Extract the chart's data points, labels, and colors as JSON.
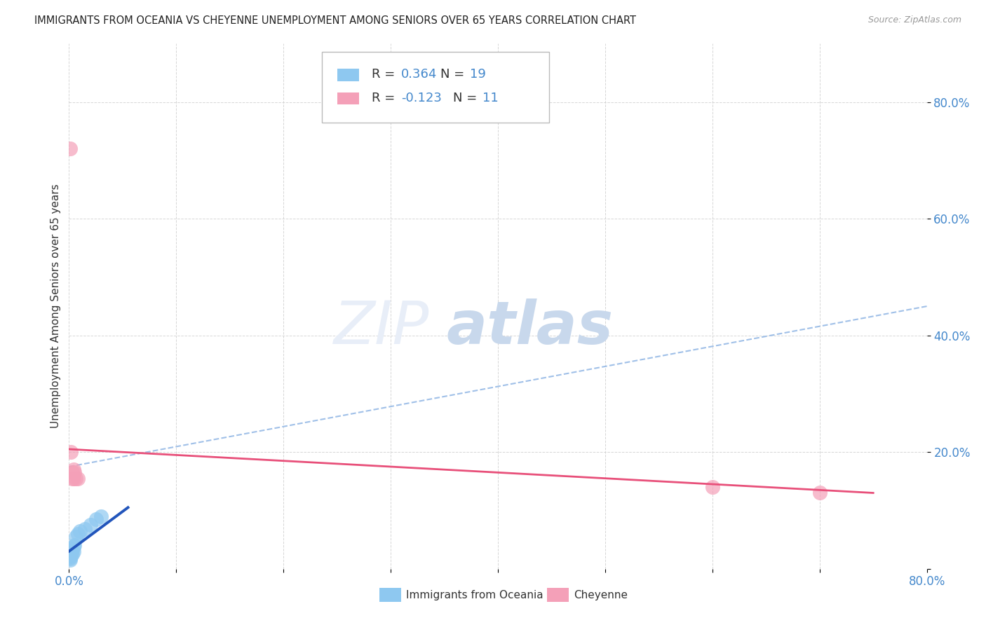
{
  "title": "IMMIGRANTS FROM OCEANIA VS CHEYENNE UNEMPLOYMENT AMONG SENIORS OVER 65 YEARS CORRELATION CHART",
  "source": "Source: ZipAtlas.com",
  "ylabel": "Unemployment Among Seniors over 65 years",
  "xlim": [
    0.0,
    0.8
  ],
  "ylim": [
    0.0,
    0.9
  ],
  "xtick_positions": [
    0.0,
    0.1,
    0.2,
    0.3,
    0.4,
    0.5,
    0.6,
    0.7,
    0.8
  ],
  "xticklabels": [
    "0.0%",
    "",
    "",
    "",
    "",
    "",
    "",
    "",
    "80.0%"
  ],
  "ytick_positions": [
    0.0,
    0.2,
    0.4,
    0.6,
    0.8
  ],
  "yticklabels": [
    "",
    "20.0%",
    "40.0%",
    "60.0%",
    "80.0%"
  ],
  "r1": 0.364,
  "n1": 19,
  "r2": -0.123,
  "n2": 11,
  "color_blue": "#8EC8F0",
  "color_pink": "#F4A0B8",
  "color_line_blue": "#2255BB",
  "color_line_pink": "#E8507A",
  "color_dash": "#A0C0E8",
  "tick_color": "#4488CC",
  "blue_points": [
    [
      0.001,
      0.02
    ],
    [
      0.001,
      0.015
    ],
    [
      0.001,
      0.025
    ],
    [
      0.001,
      0.018
    ],
    [
      0.002,
      0.022
    ],
    [
      0.002,
      0.028
    ],
    [
      0.002,
      0.035
    ],
    [
      0.003,
      0.025
    ],
    [
      0.003,
      0.032
    ],
    [
      0.004,
      0.03
    ],
    [
      0.004,
      0.038
    ],
    [
      0.005,
      0.04
    ],
    [
      0.006,
      0.055
    ],
    [
      0.008,
      0.06
    ],
    [
      0.01,
      0.065
    ],
    [
      0.015,
      0.068
    ],
    [
      0.02,
      0.075
    ],
    [
      0.025,
      0.085
    ],
    [
      0.03,
      0.09
    ]
  ],
  "pink_points": [
    [
      0.001,
      0.72
    ],
    [
      0.002,
      0.2
    ],
    [
      0.003,
      0.165
    ],
    [
      0.003,
      0.155
    ],
    [
      0.004,
      0.17
    ],
    [
      0.004,
      0.155
    ],
    [
      0.005,
      0.165
    ],
    [
      0.006,
      0.155
    ],
    [
      0.008,
      0.155
    ],
    [
      0.6,
      0.14
    ],
    [
      0.7,
      0.13
    ]
  ],
  "blue_line_x": [
    0.0,
    0.055
  ],
  "blue_line_y": [
    0.03,
    0.105
  ],
  "pink_line_x": [
    0.0,
    0.75
  ],
  "pink_line_y": [
    0.205,
    0.13
  ],
  "dash_line_x": [
    0.0,
    0.8
  ],
  "dash_line_y": [
    0.175,
    0.45
  ]
}
